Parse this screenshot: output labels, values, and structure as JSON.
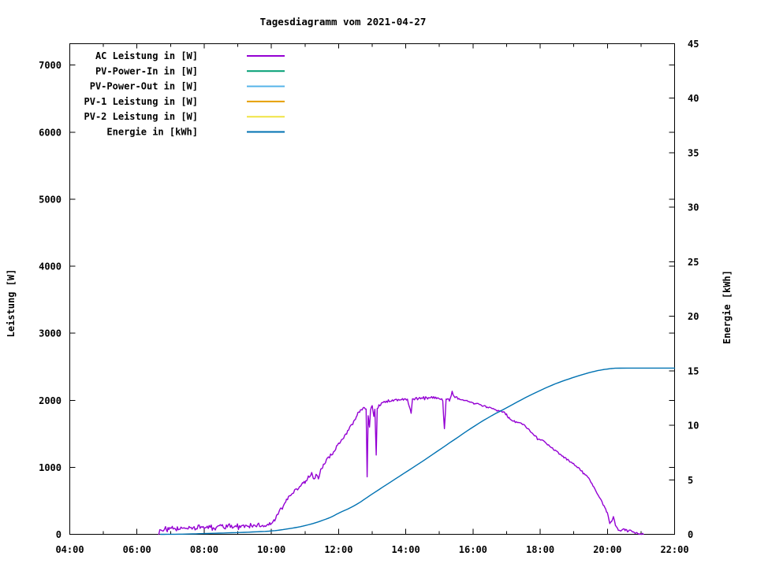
{
  "title": "Tagesdiagramm vom 2021-04-27",
  "colors": {
    "axis": "#000000",
    "background": "#ffffff",
    "text": "#000000"
  },
  "chart_data": {
    "type": "line",
    "title": "Tagesdiagramm vom 2021-04-27",
    "x_axis": {
      "range_hours": [
        4,
        22
      ],
      "minor_tick_every_hours": 1,
      "major_ticks": [
        {
          "hour": 4,
          "label": "04:00"
        },
        {
          "hour": 6,
          "label": "06:00"
        },
        {
          "hour": 8,
          "label": "08:00"
        },
        {
          "hour": 10,
          "label": "10:00"
        },
        {
          "hour": 12,
          "label": "12:00"
        },
        {
          "hour": 14,
          "label": "14:00"
        },
        {
          "hour": 16,
          "label": "16:00"
        },
        {
          "hour": 18,
          "label": "18:00"
        },
        {
          "hour": 20,
          "label": "20:00"
        },
        {
          "hour": 22,
          "label": "22:00"
        }
      ]
    },
    "y_axis_left": {
      "label": "Leistung [W]",
      "range": [
        0,
        7320
      ],
      "tick_values": [
        0,
        1000,
        2000,
        3000,
        4000,
        5000,
        6000,
        7000
      ]
    },
    "y_axis_right": {
      "label": "Energie [kWh]",
      "range": [
        0,
        45
      ],
      "tick_values": [
        0,
        5,
        10,
        15,
        20,
        25,
        30,
        35,
        40,
        45
      ]
    },
    "legend": {
      "position": "top-left"
    },
    "series": [
      {
        "name": "AC Leistung in [W]",
        "color": "#9400D3",
        "axis": "left",
        "data_visible": true,
        "noise_bands": [
          [
            6.65,
            10.05,
            30
          ],
          [
            10.05,
            12.6,
            22
          ],
          [
            12.6,
            15.6,
            16
          ],
          [
            15.6,
            19.8,
            10
          ],
          [
            19.8,
            21.07,
            14
          ]
        ],
        "points": [
          [
            6.65,
            5
          ],
          [
            6.68,
            45
          ],
          [
            6.72,
            90
          ],
          [
            6.78,
            55
          ],
          [
            6.85,
            85
          ],
          [
            6.95,
            70
          ],
          [
            7.05,
            95
          ],
          [
            7.15,
            75
          ],
          [
            7.25,
            100
          ],
          [
            7.4,
            85
          ],
          [
            7.55,
            105
          ],
          [
            7.7,
            90
          ],
          [
            7.85,
            110
          ],
          [
            8.0,
            100
          ],
          [
            8.15,
            120
          ],
          [
            8.3,
            105
          ],
          [
            8.45,
            125
          ],
          [
            8.6,
            110
          ],
          [
            8.75,
            130
          ],
          [
            8.9,
            115
          ],
          [
            9.05,
            135
          ],
          [
            9.2,
            120
          ],
          [
            9.35,
            140
          ],
          [
            9.5,
            130
          ],
          [
            9.65,
            145
          ],
          [
            9.8,
            140
          ],
          [
            9.95,
            155
          ],
          [
            10.05,
            175
          ],
          [
            10.15,
            260
          ],
          [
            10.25,
            350
          ],
          [
            10.35,
            430
          ],
          [
            10.45,
            510
          ],
          [
            10.6,
            600
          ],
          [
            10.75,
            680
          ],
          [
            10.9,
            740
          ],
          [
            11.0,
            780
          ],
          [
            11.1,
            850
          ],
          [
            11.2,
            920
          ],
          [
            11.27,
            810
          ],
          [
            11.33,
            900
          ],
          [
            11.4,
            830
          ],
          [
            11.47,
            960
          ],
          [
            11.55,
            1040
          ],
          [
            11.7,
            1140
          ],
          [
            11.85,
            1240
          ],
          [
            12.0,
            1340
          ],
          [
            12.15,
            1450
          ],
          [
            12.3,
            1560
          ],
          [
            12.45,
            1680
          ],
          [
            12.55,
            1780
          ],
          [
            12.65,
            1850
          ],
          [
            12.75,
            1890
          ],
          [
            12.82,
            1870
          ],
          [
            12.85,
            850
          ],
          [
            12.88,
            1780
          ],
          [
            12.92,
            1600
          ],
          [
            12.95,
            1880
          ],
          [
            13.0,
            1930
          ],
          [
            13.05,
            1750
          ],
          [
            13.08,
            1900
          ],
          [
            13.12,
            1190
          ],
          [
            13.15,
            1880
          ],
          [
            13.2,
            1920
          ],
          [
            13.3,
            1960
          ],
          [
            13.45,
            1990
          ],
          [
            13.6,
            2000
          ],
          [
            13.75,
            2010
          ],
          [
            13.9,
            2020
          ],
          [
            14.05,
            2010
          ],
          [
            14.16,
            1800
          ],
          [
            14.2,
            2010
          ],
          [
            14.35,
            2030
          ],
          [
            14.5,
            2040
          ],
          [
            14.65,
            2050
          ],
          [
            14.8,
            2045
          ],
          [
            14.95,
            2035
          ],
          [
            15.1,
            2020
          ],
          [
            15.15,
            1565
          ],
          [
            15.2,
            2025
          ],
          [
            15.3,
            2000
          ],
          [
            15.38,
            2130
          ],
          [
            15.44,
            2060
          ],
          [
            15.55,
            2030
          ],
          [
            15.7,
            2010
          ],
          [
            15.85,
            1990
          ],
          [
            16.0,
            1965
          ],
          [
            16.2,
            1935
          ],
          [
            16.4,
            1905
          ],
          [
            16.6,
            1875
          ],
          [
            16.75,
            1855
          ],
          [
            16.9,
            1835
          ],
          [
            17.0,
            1790
          ],
          [
            17.1,
            1720
          ],
          [
            17.2,
            1695
          ],
          [
            17.35,
            1675
          ],
          [
            17.5,
            1640
          ],
          [
            17.65,
            1570
          ],
          [
            17.8,
            1490
          ],
          [
            17.95,
            1420
          ],
          [
            18.1,
            1395
          ],
          [
            18.25,
            1330
          ],
          [
            18.45,
            1250
          ],
          [
            18.65,
            1170
          ],
          [
            18.85,
            1100
          ],
          [
            19.05,
            1030
          ],
          [
            19.25,
            940
          ],
          [
            19.45,
            830
          ],
          [
            19.6,
            700
          ],
          [
            19.75,
            560
          ],
          [
            19.9,
            420
          ],
          [
            20.0,
            330
          ],
          [
            20.07,
            150
          ],
          [
            20.12,
            200
          ],
          [
            20.18,
            255
          ],
          [
            20.24,
            140
          ],
          [
            20.3,
            80
          ],
          [
            20.4,
            55
          ],
          [
            20.5,
            75
          ],
          [
            20.6,
            45
          ],
          [
            20.7,
            60
          ],
          [
            20.8,
            35
          ],
          [
            20.9,
            25
          ],
          [
            21.0,
            10
          ],
          [
            21.07,
            0
          ]
        ]
      },
      {
        "name": "PV-Power-In in [W]",
        "color": "#009E73",
        "axis": "left",
        "data_visible": false,
        "points": []
      },
      {
        "name": "PV-Power-Out in [W]",
        "color": "#56B4E9",
        "axis": "left",
        "data_visible": false,
        "points": []
      },
      {
        "name": "PV-1 Leistung in [W]",
        "color": "#E69F00",
        "axis": "left",
        "data_visible": false,
        "points": []
      },
      {
        "name": "PV-2 Leistung in [W]",
        "color": "#F0E442",
        "axis": "left",
        "data_visible": false,
        "points": []
      },
      {
        "name": "Energie in [kWh]",
        "color": "#0072B2",
        "axis": "right",
        "data_visible": true,
        "smooth": true,
        "points": [
          [
            6.7,
            0
          ],
          [
            7.2,
            0.01
          ],
          [
            7.6,
            0.03
          ],
          [
            8.0,
            0.07
          ],
          [
            8.5,
            0.11
          ],
          [
            9.0,
            0.16
          ],
          [
            9.5,
            0.22
          ],
          [
            10.0,
            0.3
          ],
          [
            10.3,
            0.41
          ],
          [
            10.6,
            0.55
          ],
          [
            10.9,
            0.72
          ],
          [
            11.2,
            0.95
          ],
          [
            11.5,
            1.25
          ],
          [
            11.8,
            1.6
          ],
          [
            12.0,
            1.95
          ],
          [
            12.3,
            2.35
          ],
          [
            12.6,
            2.85
          ],
          [
            13.0,
            3.7
          ],
          [
            13.5,
            4.7
          ],
          [
            14.0,
            5.7
          ],
          [
            14.5,
            6.7
          ],
          [
            15.0,
            7.75
          ],
          [
            15.5,
            8.8
          ],
          [
            16.0,
            9.85
          ],
          [
            16.5,
            10.8
          ],
          [
            17.0,
            11.6
          ],
          [
            17.5,
            12.45
          ],
          [
            18.0,
            13.2
          ],
          [
            18.4,
            13.75
          ],
          [
            18.8,
            14.2
          ],
          [
            19.2,
            14.6
          ],
          [
            19.6,
            14.95
          ],
          [
            19.9,
            15.12
          ],
          [
            20.1,
            15.2
          ],
          [
            20.3,
            15.25
          ],
          [
            22.0,
            15.25
          ]
        ]
      }
    ]
  }
}
